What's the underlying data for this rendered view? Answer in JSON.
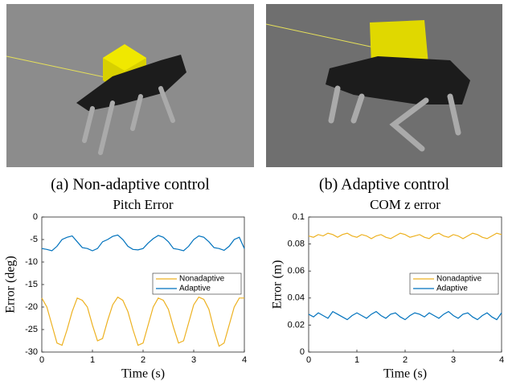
{
  "captions": [
    "(a) Non-adaptive control",
    "(b) Adaptive control"
  ],
  "chart_data": [
    {
      "type": "line",
      "title": "Pitch Error",
      "xlabel": "Time (s)",
      "ylabel": "Error (deg)",
      "x": [
        0,
        0.1,
        0.2,
        0.3,
        0.4,
        0.5,
        0.6,
        0.7,
        0.8,
        0.9,
        1,
        1.1,
        1.2,
        1.3,
        1.4,
        1.5,
        1.6,
        1.7,
        1.8,
        1.9,
        2,
        2.1,
        2.2,
        2.3,
        2.4,
        2.5,
        2.6,
        2.7,
        2.8,
        2.9,
        3,
        3.1,
        3.2,
        3.3,
        3.4,
        3.5,
        3.6,
        3.7,
        3.8,
        3.9,
        4
      ],
      "series": [
        {
          "name": "Nonadaptive",
          "color": "#edb120",
          "values": [
            -18,
            -20,
            -24,
            -28,
            -28.5,
            -25,
            -21,
            -18,
            -18.5,
            -20,
            -24,
            -27.5,
            -27,
            -23,
            -19.5,
            -17.8,
            -18.5,
            -21,
            -25,
            -28.5,
            -28,
            -24,
            -20,
            -18,
            -18.5,
            -20.5,
            -24.5,
            -28,
            -27.5,
            -23.5,
            -19.5,
            -17.8,
            -18.3,
            -20.5,
            -25,
            -28.7,
            -28,
            -24,
            -20,
            -18,
            -18
          ]
        },
        {
          "name": "Adaptive",
          "color": "#0072bd",
          "values": [
            -7,
            -7.2,
            -7.5,
            -6.5,
            -5,
            -4.5,
            -4.2,
            -5.5,
            -6.8,
            -7,
            -7.5,
            -7,
            -5.5,
            -5,
            -4.3,
            -4,
            -5,
            -6.5,
            -7.2,
            -7.3,
            -7,
            -5.8,
            -4.8,
            -4.1,
            -4.5,
            -5.5,
            -7,
            -7.2,
            -7.5,
            -6.5,
            -5,
            -4.2,
            -4.5,
            -5.5,
            -6.8,
            -7,
            -7.4,
            -6.5,
            -5,
            -4.5,
            -7
          ]
        }
      ],
      "xlim": [
        0,
        4
      ],
      "xticks": [
        0,
        1,
        2,
        3,
        4
      ],
      "ylim": [
        -30,
        0
      ],
      "yticks": [
        -30,
        -25,
        -20,
        -15,
        -10,
        -5,
        0
      ]
    },
    {
      "type": "line",
      "title": "COM z error",
      "xlabel": "Time (s)",
      "ylabel": "Error (m)",
      "x": [
        0,
        0.1,
        0.2,
        0.3,
        0.4,
        0.5,
        0.6,
        0.7,
        0.8,
        0.9,
        1,
        1.1,
        1.2,
        1.3,
        1.4,
        1.5,
        1.6,
        1.7,
        1.8,
        1.9,
        2,
        2.1,
        2.2,
        2.3,
        2.4,
        2.5,
        2.6,
        2.7,
        2.8,
        2.9,
        3,
        3.1,
        3.2,
        3.3,
        3.4,
        3.5,
        3.6,
        3.7,
        3.8,
        3.9,
        4
      ],
      "series": [
        {
          "name": "Nonadaptive",
          "color": "#edb120",
          "values": [
            0.086,
            0.085,
            0.087,
            0.086,
            0.088,
            0.087,
            0.085,
            0.087,
            0.088,
            0.086,
            0.085,
            0.087,
            0.086,
            0.084,
            0.086,
            0.087,
            0.085,
            0.084,
            0.086,
            0.088,
            0.087,
            0.085,
            0.086,
            0.087,
            0.085,
            0.084,
            0.087,
            0.088,
            0.086,
            0.085,
            0.087,
            0.086,
            0.084,
            0.086,
            0.088,
            0.087,
            0.085,
            0.084,
            0.086,
            0.088,
            0.087
          ]
        },
        {
          "name": "Adaptive",
          "color": "#0072bd",
          "values": [
            0.028,
            0.026,
            0.029,
            0.027,
            0.025,
            0.03,
            0.028,
            0.026,
            0.024,
            0.027,
            0.029,
            0.027,
            0.025,
            0.028,
            0.03,
            0.027,
            0.025,
            0.028,
            0.029,
            0.026,
            0.024,
            0.027,
            0.029,
            0.028,
            0.026,
            0.029,
            0.027,
            0.025,
            0.028,
            0.03,
            0.027,
            0.025,
            0.028,
            0.029,
            0.026,
            0.024,
            0.027,
            0.029,
            0.026,
            0.024,
            0.029
          ]
        }
      ],
      "xlim": [
        0,
        4
      ],
      "xticks": [
        0,
        1,
        2,
        3,
        4
      ],
      "ylim": [
        0,
        0.1
      ],
      "yticks": [
        0,
        0.02,
        0.04,
        0.06,
        0.08,
        0.1
      ]
    }
  ]
}
